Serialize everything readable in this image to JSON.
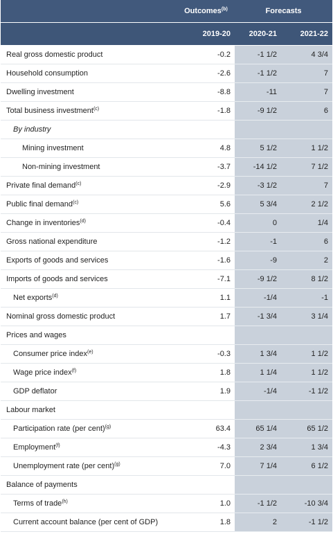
{
  "table": {
    "header": {
      "outcomes": "Outcomes",
      "outcomes_note": "(b)",
      "forecasts": "Forecasts",
      "years": [
        "2019-20",
        "2020-21",
        "2021-22"
      ]
    },
    "rows": [
      {
        "label": "Real gross domestic product",
        "values": [
          "-0.2",
          "-1 1/2",
          "4 3/4"
        ]
      },
      {
        "label": "Household consumption",
        "values": [
          "-2.6",
          "-1 1/2",
          "7"
        ]
      },
      {
        "label": "Dwelling investment",
        "values": [
          "-8.8",
          "-11",
          "7"
        ]
      },
      {
        "label": "Total business investment",
        "note": "(c)",
        "values": [
          "-1.8",
          "-9 1/2",
          "6"
        ]
      },
      {
        "label": "By industry",
        "values": []
      },
      {
        "label": "Mining investment",
        "values": [
          "4.8",
          "5 1/2",
          "1 1/2"
        ]
      },
      {
        "label": "Non-mining investment",
        "values": [
          "-3.7",
          "-14 1/2",
          "7 1/2"
        ]
      },
      {
        "label": "Private final demand",
        "note": "(c)",
        "values": [
          "-2.9",
          "-3 1/2",
          "7"
        ]
      },
      {
        "label": "Public final demand",
        "note": "(c)",
        "values": [
          "5.6",
          "5 3/4",
          "2 1/2"
        ]
      },
      {
        "label": "Change in inventories",
        "note": "(d)",
        "values": [
          "-0.4",
          "0",
          "1/4"
        ]
      },
      {
        "label": "Gross national expenditure",
        "values": [
          "-1.2",
          "-1",
          "6"
        ]
      },
      {
        "label": "Exports of goods and services",
        "values": [
          "-1.6",
          "-9",
          "2"
        ]
      },
      {
        "label": "Imports of goods and services",
        "values": [
          "-7.1",
          "-9 1/2",
          "8 1/2"
        ]
      },
      {
        "label": "Net exports",
        "note": "(d)",
        "values": [
          "1.1",
          "-1/4",
          "-1"
        ]
      },
      {
        "label": "Nominal gross domestic product",
        "values": [
          "1.7",
          "-1 3/4",
          "3 1/4"
        ]
      },
      {
        "label": "Prices and wages",
        "values": []
      },
      {
        "label": "Consumer price index",
        "note": "(e)",
        "values": [
          "-0.3",
          "1 3/4",
          "1 1/2"
        ]
      },
      {
        "label": "Wage price index",
        "note": "(f)",
        "values": [
          "1.8",
          "1 1/4",
          "1 1/2"
        ]
      },
      {
        "label": "GDP deflator",
        "values": [
          "1.9",
          "-1/4",
          "-1 1/2"
        ]
      },
      {
        "label": "Labour market",
        "values": []
      },
      {
        "label": "Participation rate (per cent)",
        "note": "(g)",
        "values": [
          "63.4",
          "65 1/4",
          "65 1/2"
        ]
      },
      {
        "label": "Employment",
        "note": "(f)",
        "values": [
          "-4.3",
          "2 3/4",
          "1 3/4"
        ]
      },
      {
        "label": "Unemployment rate (per cent)",
        "note": "(g)",
        "values": [
          "7.0",
          "7 1/4",
          "6 1/2"
        ]
      },
      {
        "label": "Balance of payments",
        "values": []
      },
      {
        "label": "Terms of trade",
        "note": "(h)",
        "values": [
          "1.0",
          "-1 1/2",
          "-10 3/4"
        ]
      },
      {
        "label": "Current account balance (per cent of GDP)",
        "values": [
          "1.8",
          "2",
          "-1 1/2"
        ]
      }
    ]
  }
}
